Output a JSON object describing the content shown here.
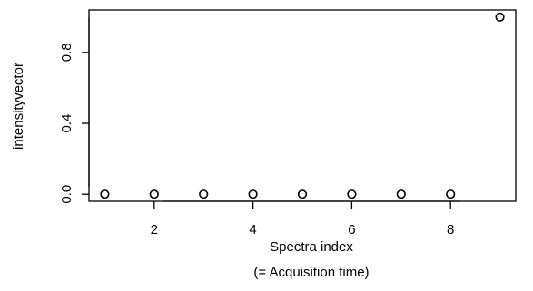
{
  "chart_data": {
    "type": "scatter",
    "title": "",
    "xlabel_line1": "Spectra index",
    "xlabel_line2": "(= Acquisition time)",
    "ylabel": "intensityvector",
    "xlim": [
      0.68,
      9.32
    ],
    "ylim": [
      -0.04,
      1.04
    ],
    "x_ticks": [
      2,
      4,
      6,
      8
    ],
    "y_ticks": [
      0.0,
      0.4,
      0.8
    ],
    "x_tick_labels": [
      "2",
      "4",
      "6",
      "8"
    ],
    "y_tick_labels": [
      "0.0",
      "0.4",
      "0.8"
    ],
    "grid": false,
    "marker": "open-circle",
    "points": [
      {
        "x": 1,
        "y": 0
      },
      {
        "x": 2,
        "y": 0
      },
      {
        "x": 3,
        "y": 0
      },
      {
        "x": 4,
        "y": 0
      },
      {
        "x": 5,
        "y": 0
      },
      {
        "x": 6,
        "y": 0
      },
      {
        "x": 7,
        "y": 0
      },
      {
        "x": 8,
        "y": 0
      },
      {
        "x": 9,
        "y": 1
      }
    ]
  }
}
